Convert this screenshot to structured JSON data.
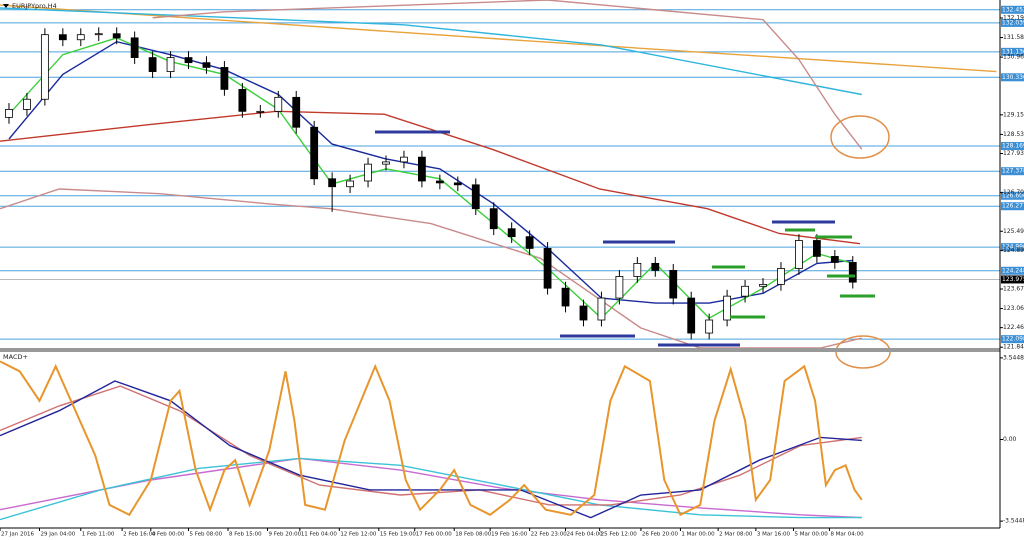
{
  "chart_data": [
    {
      "type": "candlestick",
      "title": "EURJPYpro,H4",
      "xlim": [
        -0.5,
        55.2
      ],
      "ylim": [
        121.82,
        132.76
      ],
      "open": [
        129.07,
        129.32,
        129.64,
        131.67,
        131.51,
        131.67,
        131.7,
        131.57,
        130.95,
        130.51,
        130.95,
        130.79,
        130.64,
        129.95,
        129.26,
        129.26,
        129.7,
        128.76,
        127.14,
        126.89,
        127.07,
        127.6,
        127.67,
        127.82,
        127.07,
        127.01,
        126.95,
        126.2,
        125.57,
        125.32,
        124.95,
        123.7,
        123.14,
        122.7,
        123.39,
        124.07,
        124.48,
        124.26,
        123.39,
        122.29,
        122.7,
        123.45,
        123.76,
        123.82,
        124.32,
        125.2,
        124.7,
        124.51
      ],
      "high": [
        129.52,
        129.84,
        131.87,
        131.87,
        131.87,
        131.9,
        131.9,
        131.77,
        131.15,
        131.15,
        131.15,
        130.99,
        130.84,
        130.15,
        129.46,
        129.9,
        129.9,
        128.96,
        127.34,
        127.27,
        127.8,
        127.87,
        128.02,
        128.02,
        127.27,
        127.21,
        127.15,
        126.4,
        125.77,
        125.52,
        125.15,
        123.9,
        123.34,
        123.59,
        124.27,
        124.68,
        124.68,
        124.46,
        123.59,
        122.9,
        123.65,
        123.96,
        124.02,
        124.52,
        125.4,
        125.4,
        124.9,
        124.71
      ],
      "low": [
        128.87,
        129.12,
        129.44,
        131.31,
        131.31,
        131.47,
        131.37,
        130.75,
        130.31,
        130.31,
        130.59,
        130.44,
        129.75,
        129.06,
        129.06,
        129.06,
        128.56,
        126.94,
        126.1,
        126.69,
        126.87,
        127.4,
        127.47,
        126.87,
        126.81,
        126.75,
        126.0,
        125.37,
        125.12,
        124.75,
        123.5,
        122.94,
        122.5,
        122.5,
        123.19,
        123.87,
        124.06,
        123.19,
        122.09,
        122.09,
        122.5,
        123.25,
        123.56,
        123.62,
        124.12,
        124.5,
        124.31,
        123.69
      ],
      "close": [
        129.32,
        129.64,
        131.67,
        131.51,
        131.67,
        131.7,
        131.57,
        130.95,
        130.51,
        130.95,
        130.79,
        130.64,
        129.95,
        129.26,
        129.26,
        129.7,
        128.76,
        127.14,
        126.89,
        127.07,
        127.6,
        127.67,
        127.82,
        127.07,
        127.01,
        126.95,
        126.2,
        125.57,
        125.32,
        124.95,
        123.7,
        123.14,
        122.7,
        123.39,
        124.07,
        124.48,
        124.26,
        123.39,
        122.29,
        122.7,
        123.45,
        123.76,
        123.82,
        124.32,
        125.2,
        124.7,
        124.51,
        123.89
      ],
      "lines": [
        {
          "color": "#e8a33c",
          "x": [
            -0.5,
            28,
            55
          ],
          "values": [
            132.6,
            131.51,
            130.51
          ]
        },
        {
          "color": "#2fb5dc",
          "x": [
            -0.5,
            22,
            33,
            47.5
          ],
          "values": [
            132.51,
            131.98,
            131.35,
            129.79
          ]
        },
        {
          "color": "#c98a8a",
          "x": [
            8,
            12,
            30,
            42,
            44,
            46,
            47.5
          ],
          "values": [
            132.2,
            132.39,
            132.76,
            132.14,
            130.89,
            129.17,
            128.07
          ]
        },
        {
          "color": "#c98a8a",
          "x": [
            -0.5,
            2.8,
            8.4,
            14.5,
            17.9,
            23.5,
            29.6,
            35.2,
            38.5,
            45.2,
            47.5
          ],
          "values": [
            126.2,
            126.82,
            126.67,
            126.35,
            126.2,
            125.73,
            124.64,
            122.45,
            121.82,
            121.82,
            122.13
          ]
        },
        {
          "color": "#c0392b",
          "x": [
            -0.5,
            7.9,
            14.9,
            20.9,
            26.9,
            32.9,
            38.9,
            42.9,
            47.4
          ],
          "values": [
            128.32,
            128.85,
            129.26,
            129.17,
            128.07,
            126.82,
            126.2,
            125.42,
            125.1
          ]
        },
        {
          "color": "#1a2a9c",
          "x": [
            0,
            3,
            6,
            9,
            12,
            15,
            18,
            21,
            24,
            27,
            30,
            33,
            36,
            39,
            42,
            45,
            47
          ],
          "values": [
            128.39,
            130.42,
            131.45,
            131.04,
            130.57,
            129.79,
            128.23,
            127.76,
            127.45,
            126.35,
            124.95,
            123.39,
            123.23,
            123.23,
            123.54,
            124.48,
            124.57
          ]
        },
        {
          "color": "#3ccf3c",
          "x": [
            0,
            3,
            6,
            9,
            12,
            15,
            18,
            21,
            24,
            27,
            30,
            33,
            36,
            39,
            42,
            45,
            47
          ],
          "values": [
            129.17,
            131.04,
            131.57,
            130.82,
            130.42,
            129.32,
            126.98,
            127.45,
            127.14,
            125.73,
            124.32,
            122.76,
            124.48,
            122.76,
            123.7,
            124.79,
            124.48
          ]
        }
      ],
      "yticks": [
        {
          "value": 132.195,
          "label": "132.195"
        },
        {
          "value": 131.58,
          "label": "131.580"
        },
        {
          "value": 130.965,
          "label": "130.965"
        },
        {
          "value": 129.15,
          "label": "129.150"
        },
        {
          "value": 128.535,
          "label": "128.535"
        },
        {
          "value": 127.935,
          "label": "127.935"
        },
        {
          "value": 126.705,
          "label": "126.705"
        },
        {
          "value": 125.49,
          "label": "125.490"
        },
        {
          "value": 124.89,
          "label": "124.890"
        },
        {
          "value": 123.675,
          "label": "123.675"
        },
        {
          "value": 123.06,
          "label": "123.060"
        },
        {
          "value": 122.46,
          "label": "122.460"
        },
        {
          "value": 121.845,
          "label": "121.845"
        }
      ],
      "levels": [
        132.452,
        132.039,
        {
          "value": 131.13,
          "label": "131.130"
        },
        {
          "value": 130.33,
          "label": "130.330"
        },
        128.169,
        127.378,
        126.606,
        126.277,
        {
          "value": 124.99,
          "label": "124.990"
        },
        124.248,
        122.098
      ],
      "last_price": 123.975,
      "xticks": [
        {
          "value": -0.5,
          "label": "27 Jan 2016"
        },
        {
          "value": 1.7,
          "label": "29 Jan 04:00"
        },
        {
          "value": 4.0,
          "label": "1 Feb 11:00"
        },
        {
          "value": 6.3,
          "label": "2 Feb 16:00"
        },
        {
          "value": 7.9,
          "label": "4 Feb 00:00"
        },
        {
          "value": 10.0,
          "label": "5 Feb 08:00"
        },
        {
          "value": 12.2,
          "label": "8 Feb 15:00"
        },
        {
          "value": 14.4,
          "label": "9 Feb 20:00"
        },
        {
          "value": 16.2,
          "label": "11 Feb 04:00"
        },
        {
          "value": 18.4,
          "label": "12 Feb 12:00"
        },
        {
          "value": 20.6,
          "label": "15 Feb 19:00"
        },
        {
          "value": 22.6,
          "label": "17 Feb 00:00"
        },
        {
          "value": 24.8,
          "label": "18 Feb 08:00"
        },
        {
          "value": 26.8,
          "label": "19 Feb 16:00"
        },
        {
          "value": 29.0,
          "label": "22 Feb 23:00"
        },
        {
          "value": 31.0,
          "label": "24 Feb 04:00"
        },
        {
          "value": 32.9,
          "label": "25 Feb 12:00"
        },
        {
          "value": 35.2,
          "label": "26 Feb 20:00"
        },
        {
          "value": 37.4,
          "label": "1 Mar 00:00"
        },
        {
          "value": 39.5,
          "label": "2 Mar 08:00"
        },
        {
          "value": 41.6,
          "label": "3 Mar 16:00"
        },
        {
          "value": 43.7,
          "label": "5 Mar 00:00"
        },
        {
          "value": 45.7,
          "label": "8 Mar 04:00"
        }
      ]
    },
    {
      "type": "line",
      "title": "MACD+",
      "xlim": [
        -0.5,
        55.2
      ],
      "ylim": [
        -3.8,
        3.8
      ],
      "yticks": [
        3.5448,
        {
          "value": 0,
          "label": "0.00"
        },
        -3.5448
      ],
      "lines": [
        {
          "color": "#c86ad0",
          "x": [
            -0.5,
            7.9,
            16.2,
            21.8,
            27.4,
            32.9,
            38.5,
            44.1,
            47.5
          ],
          "values": [
            -3.05,
            -1.76,
            -0.82,
            -1.33,
            -2.11,
            -2.62,
            -2.97,
            -3.27,
            -3.39
          ]
        },
        {
          "color": "#3cc3d6",
          "x": [
            -0.5,
            5.1,
            10.6,
            16.2,
            21.8,
            27.4,
            32.9,
            38.5,
            44.1,
            47.5
          ],
          "values": [
            -3.48,
            -2.19,
            -1.25,
            -0.82,
            -1.12,
            -1.98,
            -2.84,
            -3.27,
            -3.39,
            -3.39
          ]
        },
        {
          "color": "#d07070",
          "x": [
            -0.5,
            2.8,
            6.2,
            9.5,
            13.4,
            17.3,
            21.8,
            26.2,
            30.1,
            33.5,
            37.4,
            40.7,
            44.1,
            47.5
          ],
          "values": [
            0.39,
            1.46,
            2.32,
            1.25,
            -0.69,
            -1.98,
            -2.41,
            -2.19,
            -2.84,
            -2.84,
            -2.41,
            -1.55,
            -0.26,
            0.09
          ]
        },
        {
          "color": "#22249a",
          "x": [
            -0.5,
            2.8,
            5.9,
            9.0,
            12.3,
            16.2,
            20.1,
            24.0,
            28.5,
            32.4,
            35.2,
            38.5,
            41.8,
            45.2,
            47.5
          ],
          "values": [
            0.17,
            1.25,
            2.54,
            1.68,
            -0.26,
            -1.55,
            -2.19,
            -2.19,
            -2.19,
            -3.39,
            -2.41,
            -2.19,
            -0.9,
            0.09,
            -0.04
          ]
        },
        {
          "color": "#e8952c",
          "x": [
            -0.5,
            0.6,
            1.7,
            2.6,
            3.7,
            4.8,
            5.6,
            6.7,
            7.9,
            9.0,
            9.5,
            10.4,
            11.2,
            12.0,
            12.6,
            13.4,
            14.5,
            15.4,
            15.9,
            16.5,
            17.6,
            18.7,
            20.4,
            21.2,
            22.1,
            22.9,
            24.0,
            24.8,
            25.7,
            26.8,
            27.9,
            28.7,
            29.9,
            31.3,
            32.6,
            33.5,
            34.3,
            35.7,
            36.5,
            37.4,
            38.5,
            39.3,
            40.2,
            41.0,
            41.6,
            42.4,
            43.2,
            44.3,
            44.9,
            45.5,
            46.0,
            46.6,
            47.1,
            47.5
          ],
          "values": [
            3.39,
            2.96,
            1.68,
            3.18,
            1.25,
            -0.69,
            -2.84,
            -3.27,
            -1.76,
            1.68,
            2.11,
            -1.33,
            -3.05,
            -1.33,
            -0.9,
            -2.84,
            -0.47,
            2.96,
            0.82,
            -2.84,
            -3.05,
            -0.04,
            3.18,
            1.68,
            -1.76,
            -3.05,
            -2.19,
            -1.33,
            -2.84,
            -3.27,
            -2.62,
            -1.98,
            -3.05,
            -3.27,
            -2.41,
            1.68,
            3.18,
            2.54,
            -1.76,
            -3.27,
            -2.84,
            0.82,
            3.05,
            0.82,
            -2.62,
            -1.76,
            2.54,
            3.18,
            1.68,
            -1.98,
            -1.33,
            -1.12,
            -2.19,
            -2.62
          ]
        }
      ]
    }
  ]
}
